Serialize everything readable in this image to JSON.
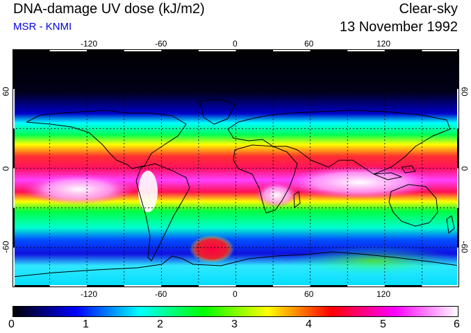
{
  "header": {
    "title": "DNA-damage UV dose (kJ/m2)",
    "subtitle": "MSR - KNMI",
    "condition": "Clear-sky",
    "date": "13 November 1992"
  },
  "map": {
    "lon_labels": [
      "-120",
      "-60",
      "0",
      "60",
      "120"
    ],
    "lat_labels": [
      "60",
      "0",
      "-60"
    ],
    "lon_range": [
      -180,
      180
    ],
    "lat_range": [
      -90,
      90
    ],
    "grid_lons": [
      -150,
      -120,
      -90,
      -60,
      -30,
      0,
      30,
      60,
      90,
      120,
      150
    ],
    "grid_lats": [
      -60,
      -30,
      0,
      30,
      60
    ],
    "grid": "dotted"
  },
  "colorbar": {
    "min": 0,
    "max": 6,
    "tick_labels": [
      "0",
      "1",
      "2",
      "3",
      "4",
      "5",
      "6"
    ],
    "colors": [
      "#000000",
      "#0000ff",
      "#00ffff",
      "#00ff00",
      "#ffff00",
      "#ff0000",
      "#ff00ff",
      "#ffffff"
    ]
  }
}
